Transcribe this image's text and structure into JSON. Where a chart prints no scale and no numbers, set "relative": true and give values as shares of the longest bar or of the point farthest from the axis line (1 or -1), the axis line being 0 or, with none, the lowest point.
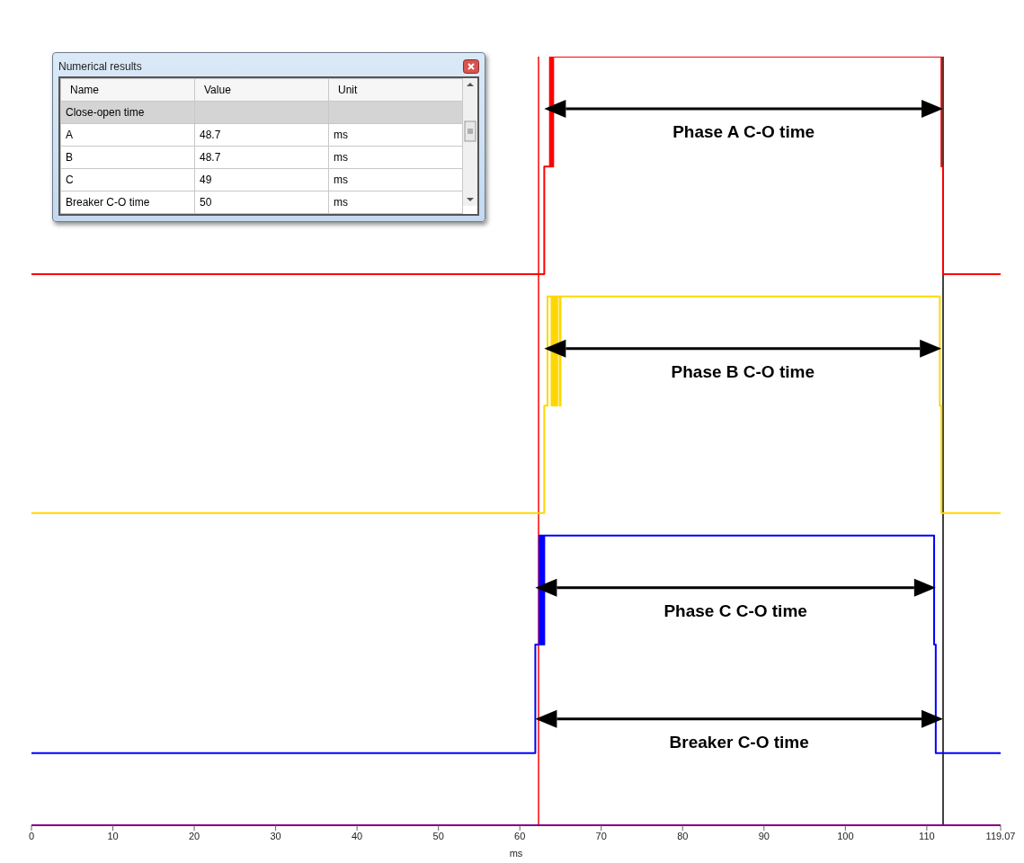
{
  "chart_data": [
    {
      "type": "step",
      "relative": true,
      "xlabel": "ms",
      "xlim": [
        0,
        119.07
      ],
      "xticks": [
        0,
        10,
        20,
        30,
        40,
        50,
        60,
        70,
        80,
        90,
        100,
        110,
        119.07
      ],
      "marker": "none",
      "series": [
        {
          "color": "#ff0000",
          "x": [
            0,
            63.0,
            63.7,
            63.8,
            63.9,
            64.0,
            64.1,
            111.8,
            112.0,
            119.07
          ],
          "values": [
            0.717,
            0.857,
            1,
            0.857,
            1,
            0.857,
            1,
            0.857,
            0.717,
            0.717
          ]
        },
        {
          "color": "#ffd700",
          "x": [
            0,
            63.0,
            63.4,
            63.9,
            64.0,
            64.2,
            64.3,
            64.5,
            64.6,
            64.9,
            65.0,
            111.6,
            111.8,
            119.07
          ],
          "values": [
            0.406,
            0.546,
            0.688,
            0.546,
            0.688,
            0.546,
            0.688,
            0.546,
            0.688,
            0.546,
            0.688,
            0.546,
            0.406,
            0.406
          ]
        },
        {
          "color": "#0000ff",
          "x": [
            0,
            61.9,
            62.4,
            62.6,
            62.7,
            62.9,
            63.0,
            110.9,
            111.1,
            119.07
          ],
          "values": [
            0.094,
            0.235,
            0.377,
            0.235,
            0.377,
            0.235,
            0.377,
            0.235,
            0.094,
            0.094
          ]
        }
      ],
      "ref_lines": [
        {
          "axis": "x",
          "value": 62.3,
          "color": "#ff0000"
        },
        {
          "axis": "x",
          "value": 112.0,
          "color": "#000000"
        }
      ],
      "annotations": [
        "Phase A C-O time",
        "Phase B C-O time",
        "Phase C C-O time",
        "Breaker C-O time"
      ]
    },
    {
      "type": "other",
      "title": "Numerical results",
      "categories": [
        "Name",
        "Value",
        "Unit"
      ],
      "y_categories": [
        "Close-open time",
        "A",
        "B",
        "C",
        "Breaker C-O time"
      ],
      "cell_labels": [
        [
          null,
          null
        ],
        [
          "48.7",
          "ms"
        ],
        [
          "48.7",
          "ms"
        ],
        [
          "49",
          "ms"
        ],
        [
          "50",
          "ms"
        ]
      ]
    }
  ]
}
